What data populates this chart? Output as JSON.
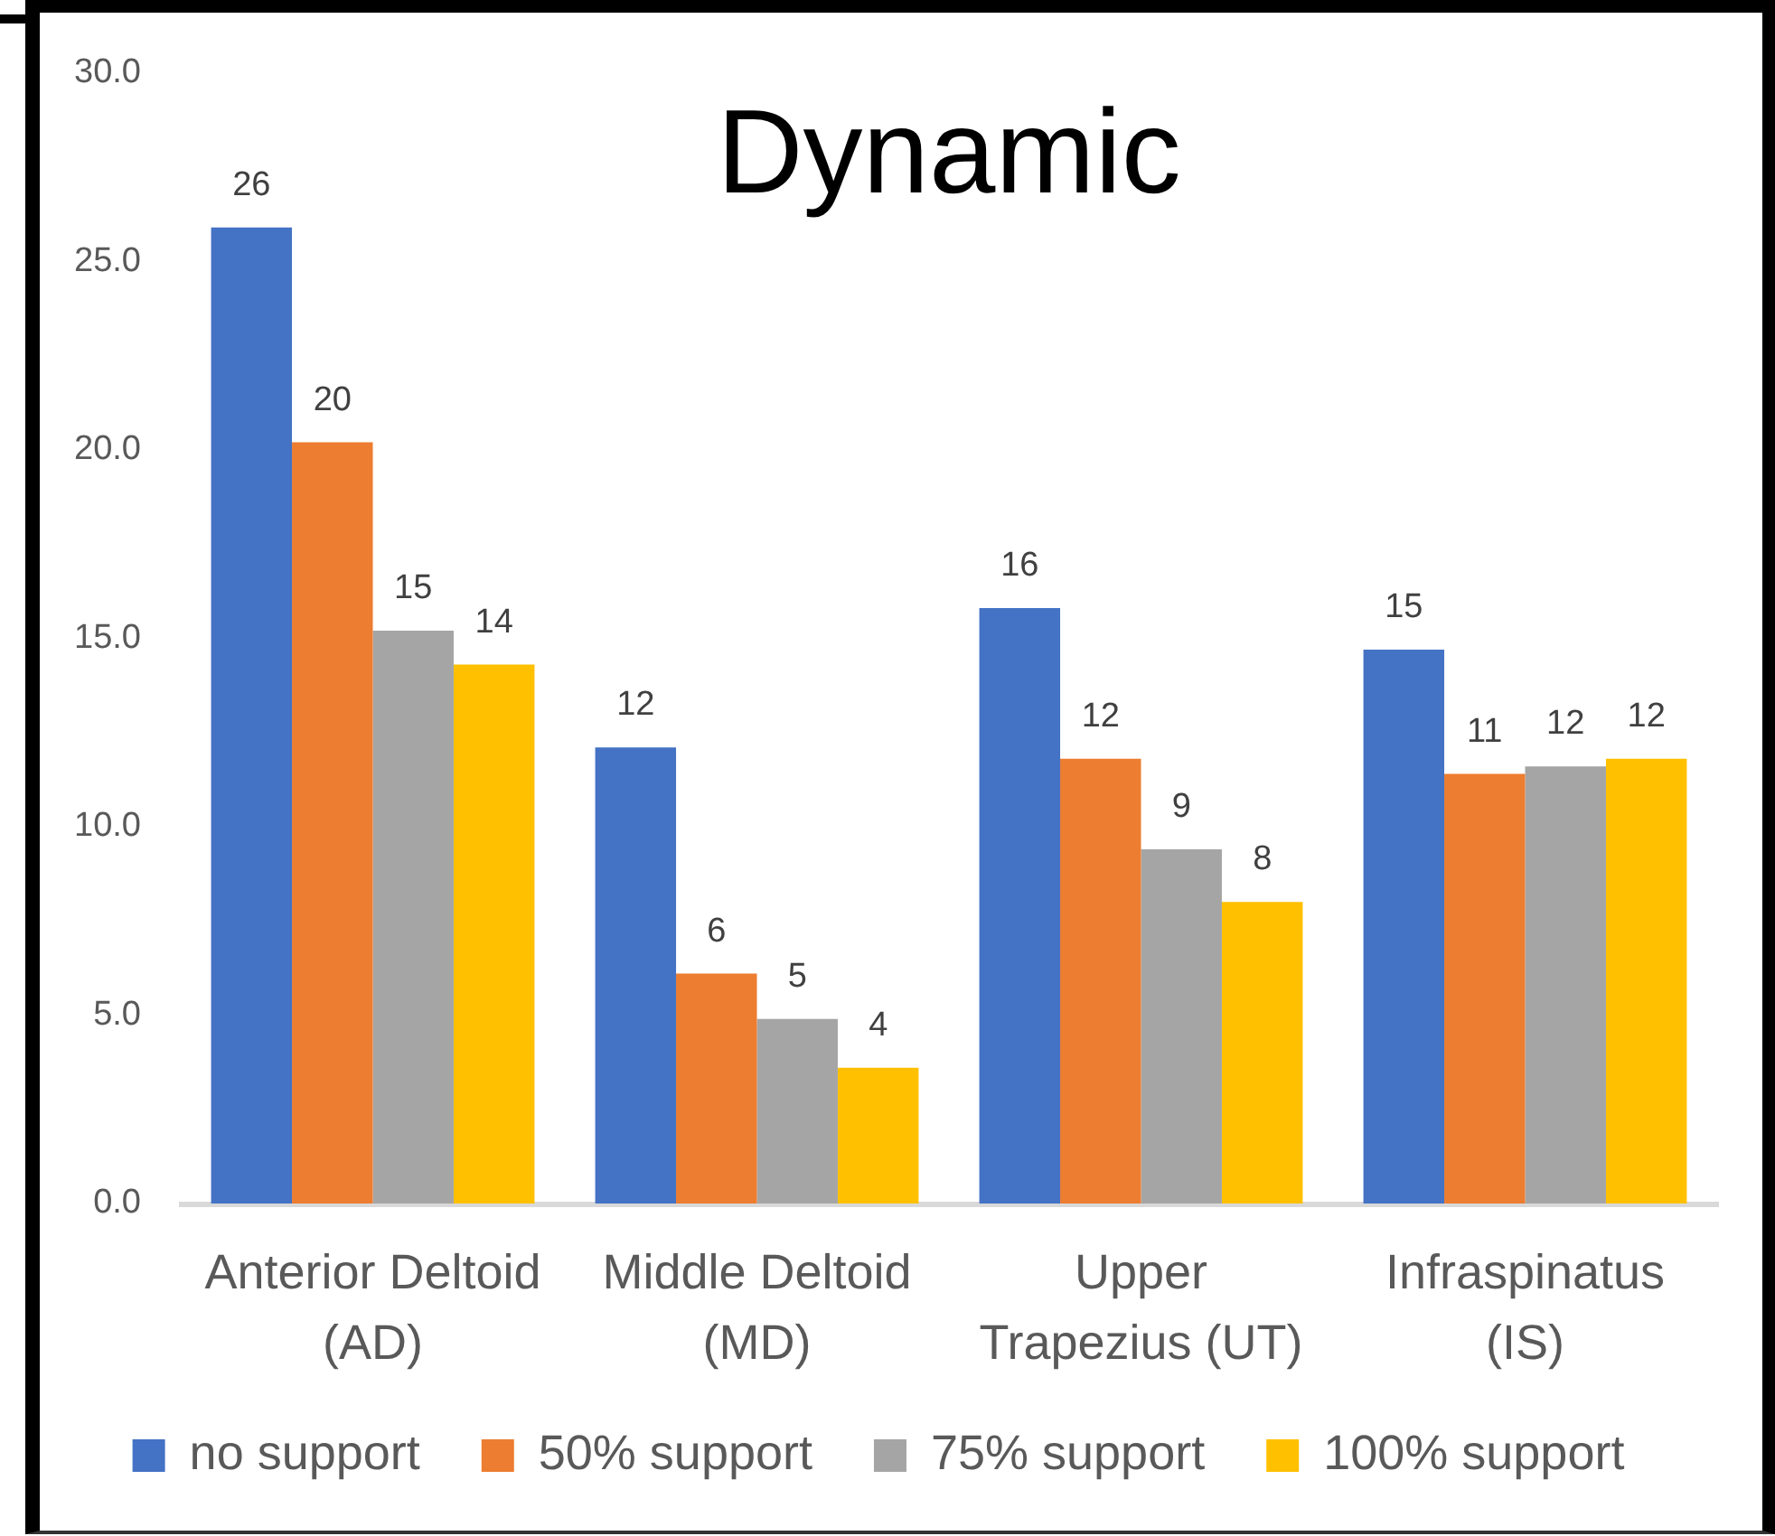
{
  "chart_data": {
    "type": "bar",
    "title": "Dynamic",
    "categories": [
      "Anterior Deltoid (AD)",
      "Middle Deltoid (MD)",
      "Upper Trapezius (UT)",
      "Infraspinatus (IS)"
    ],
    "series": [
      {
        "name": "no support",
        "color": "#4472c4",
        "values": [
          25.9,
          12.1,
          15.8,
          14.7
        ],
        "value_labels": [
          "26",
          "12",
          "16",
          "15"
        ]
      },
      {
        "name": "50% support",
        "color": "#ed7d31",
        "values": [
          20.2,
          6.1,
          11.8,
          11.4
        ],
        "value_labels": [
          "20",
          "6",
          "12",
          "11"
        ]
      },
      {
        "name": "75% support",
        "color": "#a5a5a5",
        "values": [
          15.2,
          4.9,
          9.4,
          11.6
        ],
        "value_labels": [
          "15",
          "5",
          "9",
          "12"
        ]
      },
      {
        "name": "100% support",
        "color": "#ffc000",
        "values": [
          14.3,
          3.6,
          8.0,
          11.8
        ],
        "value_labels": [
          "14",
          "4",
          "8",
          "12"
        ]
      }
    ],
    "ylim": [
      0,
      30
    ],
    "yticks": [
      {
        "value": 0,
        "label": "0.0"
      },
      {
        "value": 5,
        "label": "5.0"
      },
      {
        "value": 10,
        "label": "10.0"
      },
      {
        "value": 15,
        "label": "15.0"
      },
      {
        "value": 20,
        "label": "20.0"
      },
      {
        "value": 25,
        "label": "25.0"
      },
      {
        "value": 30,
        "label": "30.0"
      }
    ],
    "grid": false,
    "legend": "bottom"
  }
}
